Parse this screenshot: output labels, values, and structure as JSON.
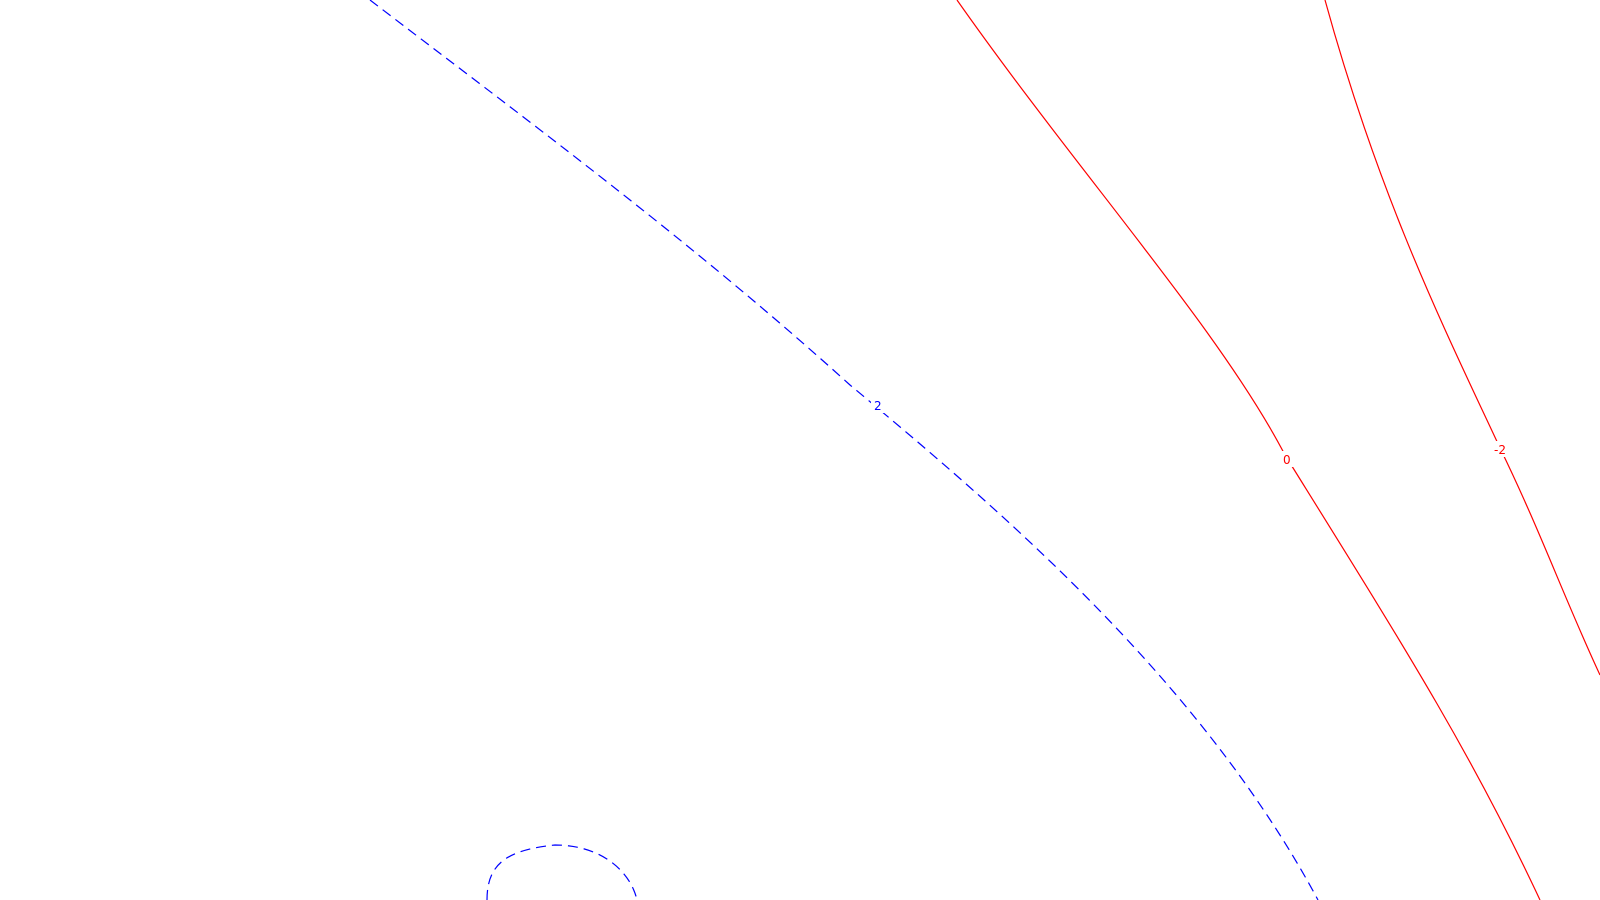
{
  "contours": [
    {
      "id": "contour-minus2-upper",
      "level": "2",
      "color": "#0000ff",
      "style": "dashed"
    },
    {
      "id": "contour-minus2-lower",
      "level": "",
      "color": "#0000ff",
      "style": "dashed"
    },
    {
      "id": "contour-zero",
      "level": "0",
      "color": "#ff0000",
      "style": "solid"
    },
    {
      "id": "contour-minus2-right",
      "level": "-2",
      "color": "#ff0000",
      "style": "solid"
    }
  ]
}
